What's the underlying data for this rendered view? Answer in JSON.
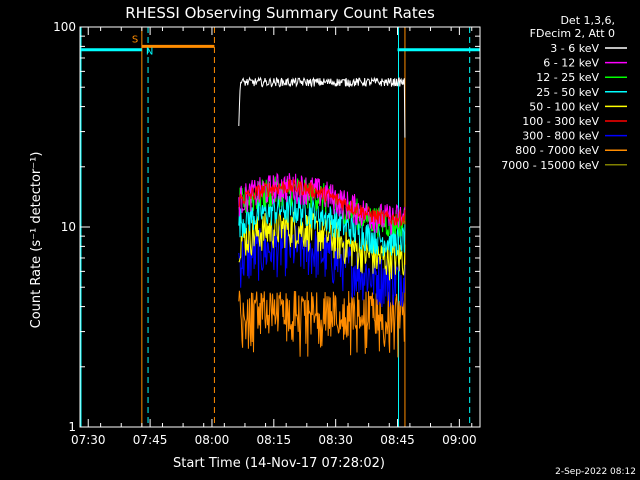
{
  "chart_data": {
    "type": "line",
    "title": "RHESSI Observing Summary Count Rates",
    "xlabel": "Start Time (14-Nov-17 07:28:02)",
    "ylabel": "Count Rate (s⁻¹ detector⁻¹)",
    "y_scale": "log",
    "ylim": [
      1,
      100
    ],
    "xlim_minutes_after_0728": [
      0,
      97
    ],
    "x_ticks": [
      {
        "label": "07:30",
        "min": 2
      },
      {
        "label": "07:45",
        "min": 17
      },
      {
        "label": "08:00",
        "min": 32
      },
      {
        "label": "08:15",
        "min": 47
      },
      {
        "label": "08:30",
        "min": 62
      },
      {
        "label": "08:45",
        "min": 77
      },
      {
        "label": "09:00",
        "min": 92
      }
    ],
    "y_ticks": [
      {
        "label": "1",
        "value": 1
      },
      {
        "label": "10",
        "value": 10
      },
      {
        "label": "100",
        "value": 100
      }
    ],
    "legend_header": [
      "Det 1,3,6,",
      "FDecim 2, Att 0"
    ],
    "legend_position": "right",
    "data_start_min": 38.5,
    "data_end_min": 78.8,
    "series": [
      {
        "name": "3 - 6 keV",
        "color": "#ffffff",
        "base": 53,
        "noise": 0.05
      },
      {
        "name": "6 - 12 keV",
        "color": "#ff00ff",
        "base": 13.5,
        "noise": 0.12
      },
      {
        "name": "12 - 25 keV",
        "color": "#00ff00",
        "base": 13,
        "noise": 0.12
      },
      {
        "name": "25 - 50 keV",
        "color": "#00ffff",
        "base": 10.5,
        "noise": 0.12
      },
      {
        "name": "50 - 100 keV",
        "color": "#ffff00",
        "base": 8.5,
        "noise": 0.15
      },
      {
        "name": "100 - 300 keV",
        "color": "#ff0000",
        "base": 13.5,
        "noise": 0.06
      },
      {
        "name": "300 - 800 keV",
        "color": "#0000ff",
        "base": 6.8,
        "noise": 0.2
      },
      {
        "name": "800 - 7000 keV",
        "color": "#ff8c00",
        "base": 3.8,
        "noise": 0.3
      },
      {
        "name": "7000 - 15000 keV",
        "color": "#808000",
        "base": 0,
        "noise": 0
      }
    ],
    "markers": [
      {
        "label": "S",
        "color": "#ff8c00",
        "bar": [
          15,
          32.6
        ],
        "value": 80
      },
      {
        "label": "N",
        "color": "#00ffff",
        "bar": [
          0,
          15
        ],
        "value": 77
      }
    ],
    "cyan_bar2": [
      77,
      97
    ],
    "orange_lines": [
      15,
      32.6,
      78.8
    ],
    "cyan_lines": [
      0,
      77
    ],
    "cyan_dashed": [
      16.5,
      94.5
    ]
  },
  "timestamp": "2-Sep-2022 08:12"
}
